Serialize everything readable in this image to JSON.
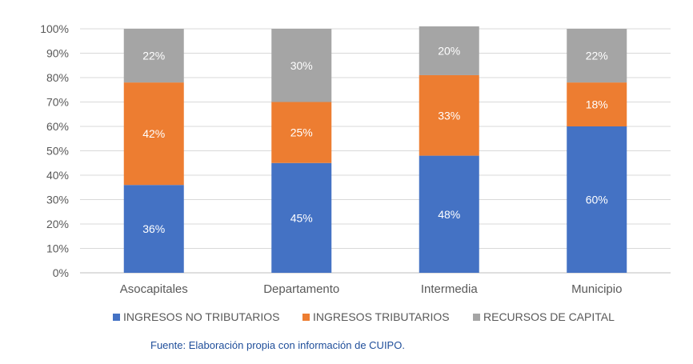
{
  "chart_data": {
    "type": "bar",
    "stacked": true,
    "normalized": true,
    "categories": [
      "Asocapitales",
      "Departamento",
      "Intermedia",
      "Municipio"
    ],
    "series": [
      {
        "name": "INGRESOS NO TRIBUTARIOS",
        "color": "#4472C4",
        "values": [
          36,
          45,
          48,
          60
        ],
        "labels": [
          "36%",
          "45%",
          "48%",
          "60%"
        ]
      },
      {
        "name": "INGRESOS TRIBUTARIOS",
        "color": "#ED7D31",
        "values": [
          42,
          25,
          33,
          18
        ],
        "labels": [
          "42%",
          "25%",
          "33%",
          "18%"
        ]
      },
      {
        "name": "RECURSOS DE CAPITAL",
        "color": "#A5A5A5",
        "values": [
          22,
          30,
          20,
          22
        ],
        "labels": [
          "22%",
          "30%",
          "20%",
          "22%"
        ]
      }
    ],
    "ylim": [
      0,
      100
    ],
    "yticks": [
      "0%",
      "10%",
      "20%",
      "30%",
      "40%",
      "50%",
      "60%",
      "70%",
      "80%",
      "90%",
      "100%"
    ],
    "grid": true,
    "legend_position": "bottom"
  },
  "source_note": "Fuente: Elaboración propia con información de CUIPO."
}
